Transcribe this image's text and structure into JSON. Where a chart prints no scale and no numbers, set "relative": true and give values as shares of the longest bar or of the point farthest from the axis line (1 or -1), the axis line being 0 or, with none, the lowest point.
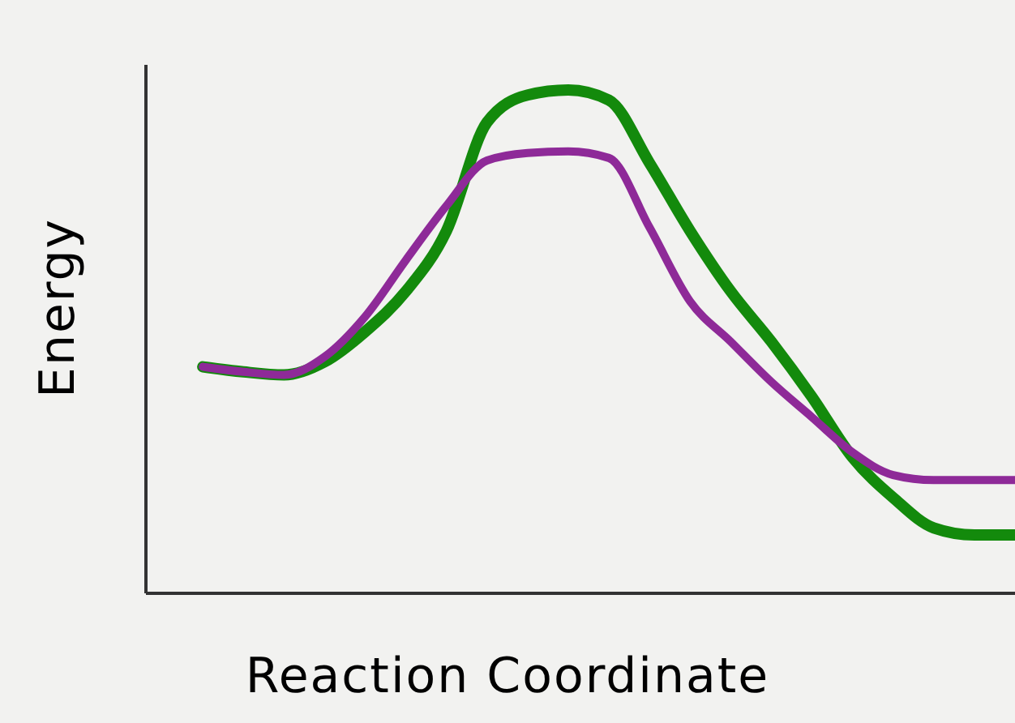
{
  "chart_data": {
    "type": "line",
    "relative": true,
    "xlabel": "Reaction Coordinate",
    "ylabel": "Energy",
    "categories": [
      null,
      null,
      null,
      null,
      null,
      null,
      null,
      null,
      null,
      null,
      null,
      null,
      null,
      null,
      null,
      null,
      null,
      null,
      null,
      null,
      null
    ],
    "series": [
      {
        "color": "#138a0c",
        "values": [
          0.45,
          0.44,
          0.434,
          0.46,
          0.52,
          0.6,
          0.72,
          0.936,
          0.99,
          1,
          0.98,
          0.855,
          0.72,
          0.6,
          0.5,
          0.39,
          0.27,
          0.19,
          0.13,
          0.116,
          0.116
        ]
      },
      {
        "color": "#8e2a98",
        "values": [
          0.45,
          0.44,
          0.434,
          0.47,
          0.55,
          0.662,
          0.77,
          0.86,
          0.875,
          0.878,
          0.865,
          0.727,
          0.58,
          0.5,
          0.42,
          0.35,
          0.28,
          0.235,
          0.225,
          0.225,
          0.225
        ]
      }
    ],
    "grid": false,
    "legend": false,
    "marker": "none",
    "line_style": "solid"
  }
}
